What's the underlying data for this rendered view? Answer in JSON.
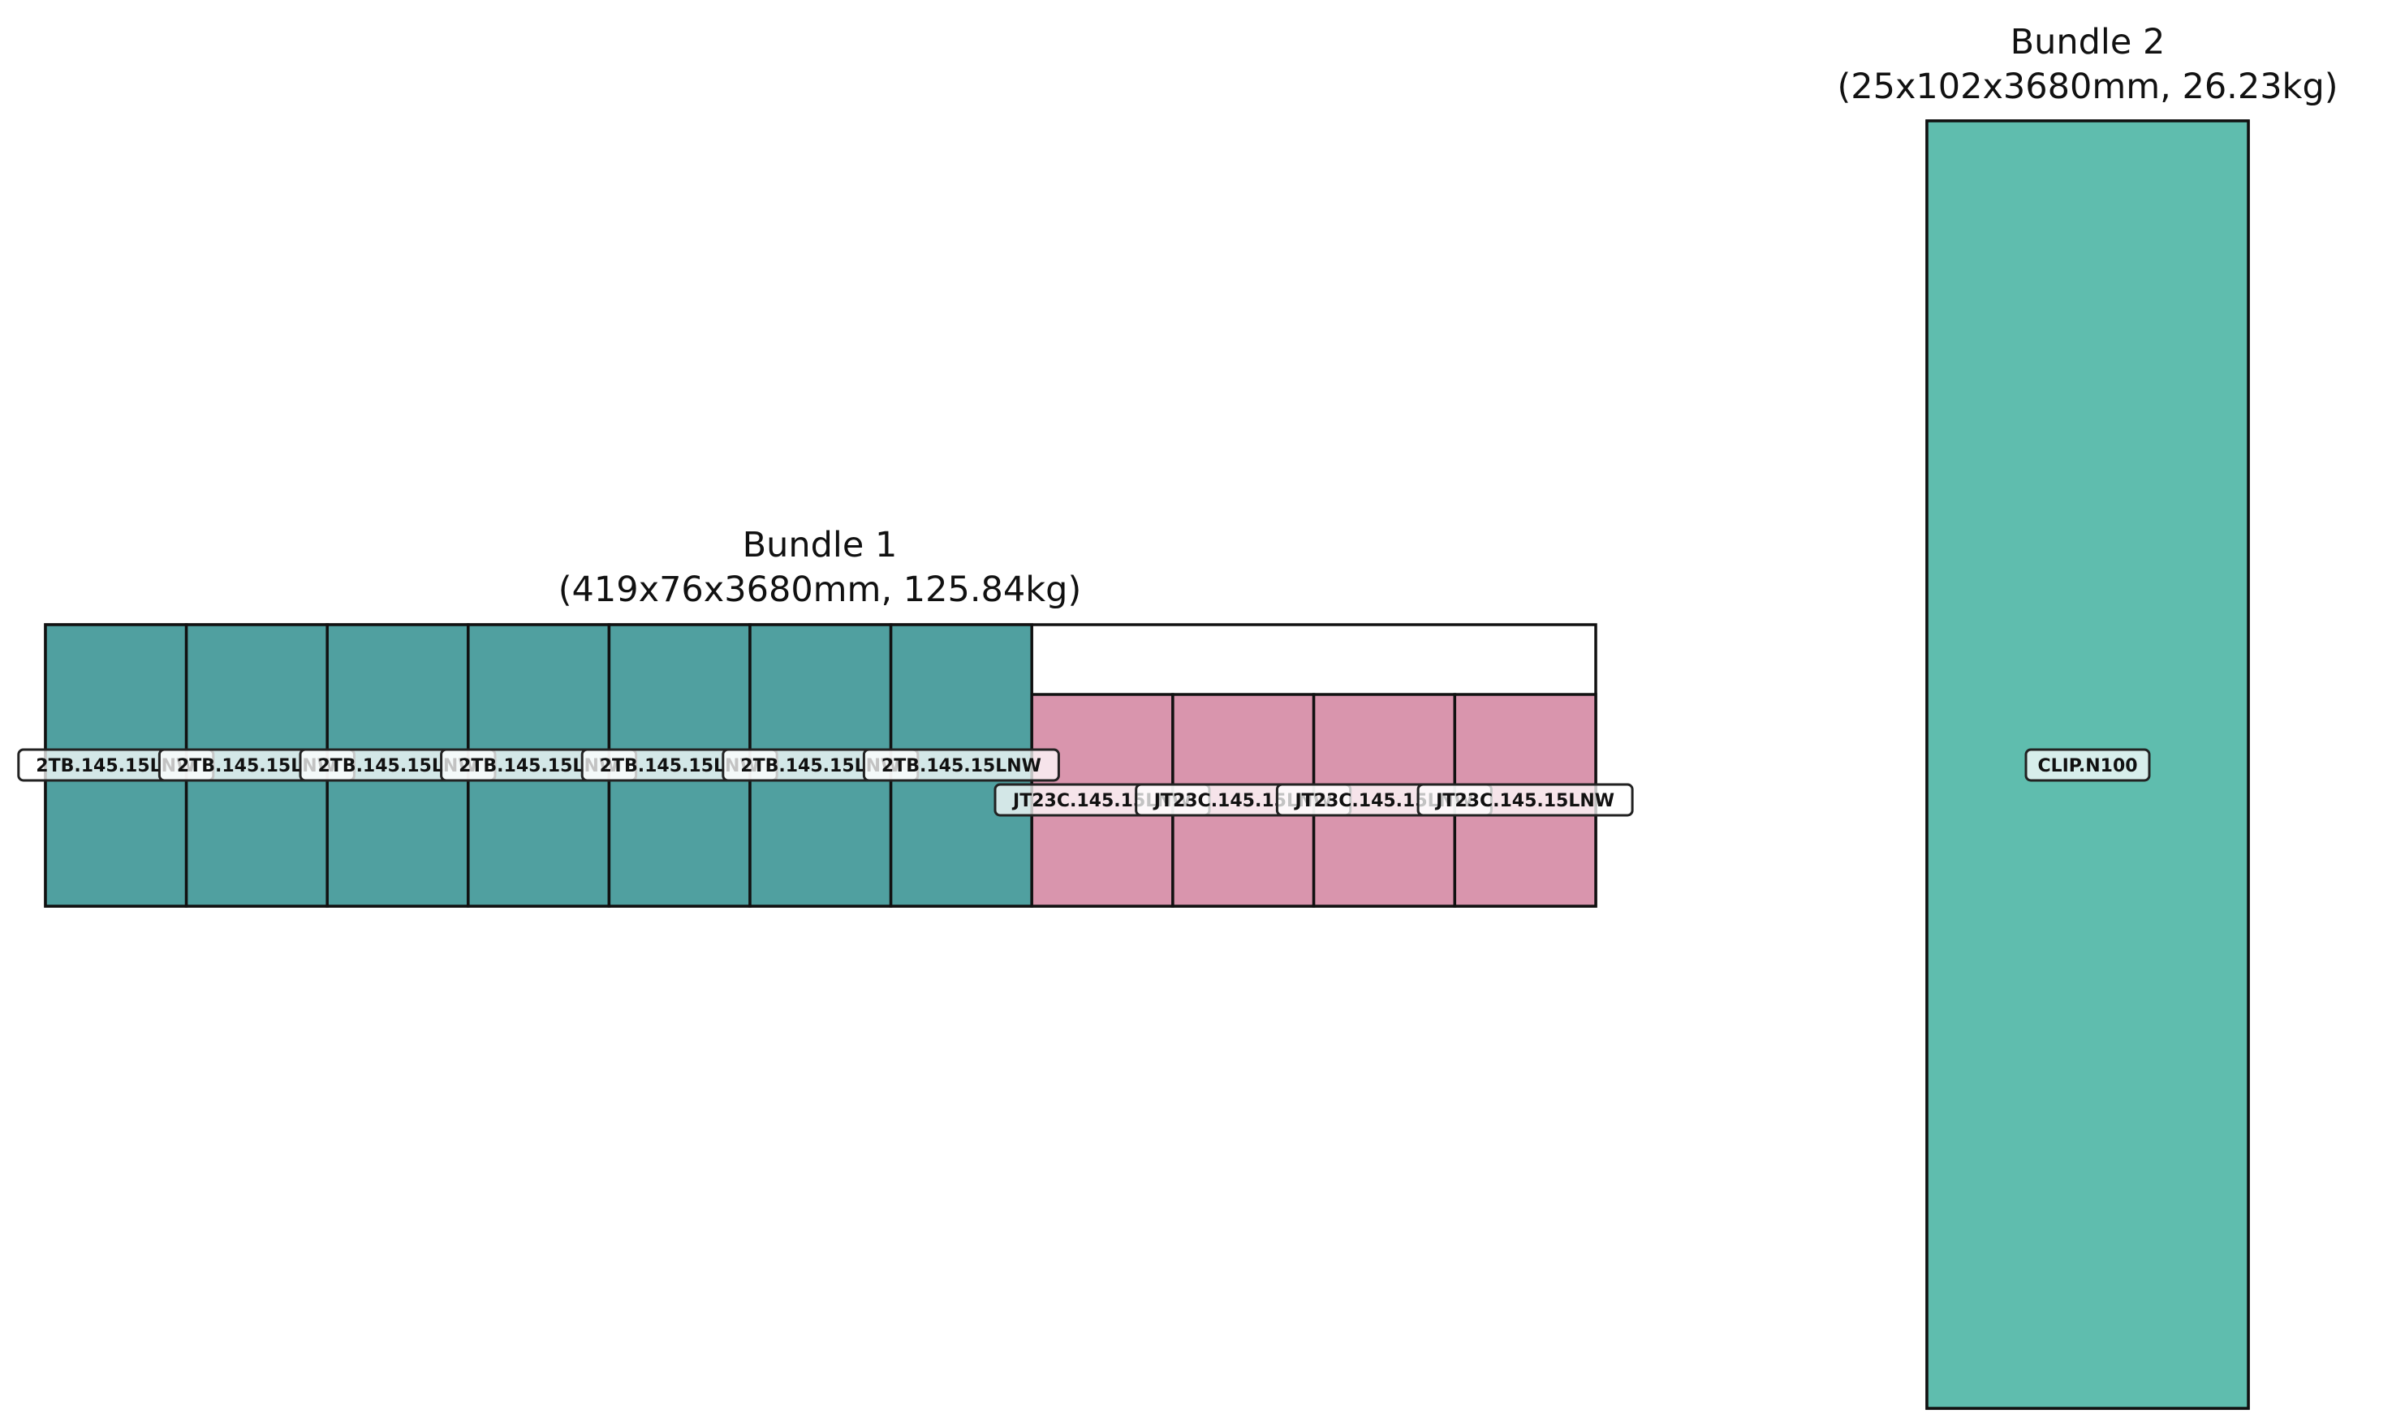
{
  "colors": {
    "teal_dark": "#50a0a0",
    "pink": "#d995ad",
    "teal_light": "#5fbdae",
    "stroke": "#111111"
  },
  "bundles": [
    {
      "title": "Bundle 1",
      "subtitle": "(419x76x3680mm, 125.84kg)",
      "rows": [
        {
          "color_key": "teal_dark",
          "parts": [
            "2TB.145.15LNW",
            "2TB.145.15LNW",
            "2TB.145.15LNW",
            "2TB.145.15LNW",
            "2TB.145.15LNW",
            "2TB.145.15LNW",
            "2TB.145.15LNW"
          ]
        },
        {
          "color_key": "pink",
          "parts": [
            "JT23C.145.15LNW",
            "JT23C.145.15LNW",
            "JT23C.145.15LNW",
            "JT23C.145.15LNW"
          ]
        }
      ]
    },
    {
      "title": "Bundle 2",
      "subtitle": "(25x102x3680mm, 26.23kg)",
      "rows": [
        {
          "color_key": "teal_light",
          "parts": [
            "CLIP.N100"
          ]
        }
      ]
    }
  ]
}
